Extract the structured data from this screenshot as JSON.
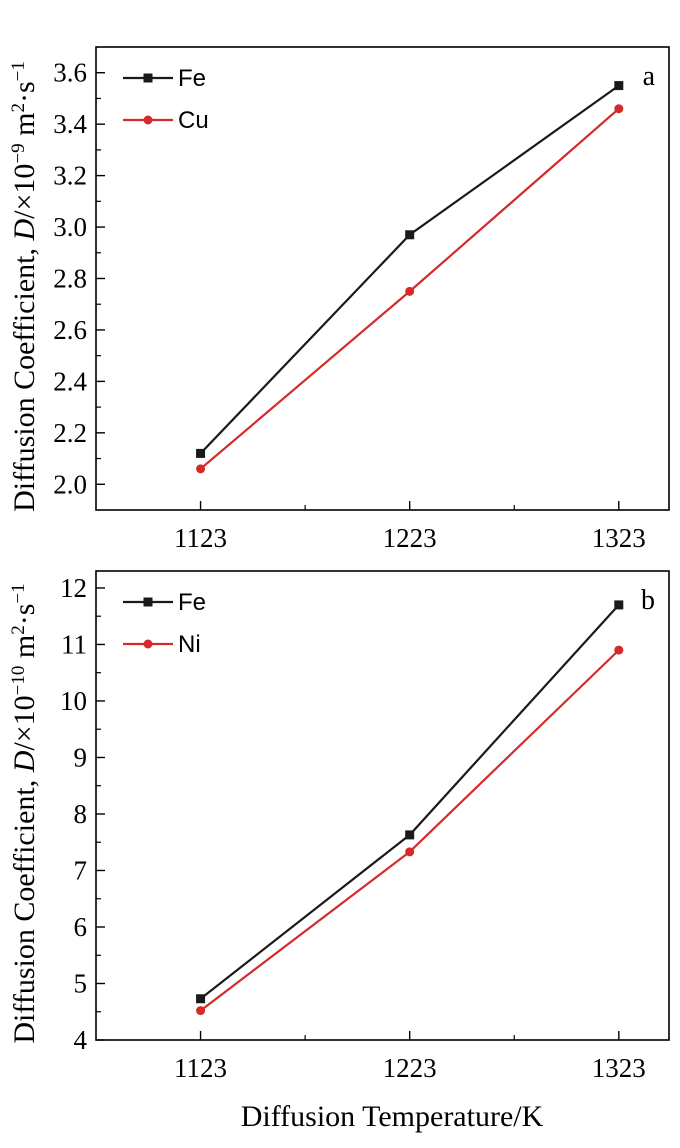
{
  "chart_data": [
    {
      "type": "line",
      "panel_label": "a",
      "categories": [
        "1123",
        "1223",
        "1323"
      ],
      "x": [
        1123,
        1223,
        1323
      ],
      "ylim": [
        1.9,
        3.7
      ],
      "yticks": [
        "2.0",
        "2.2",
        "2.4",
        "2.6",
        "2.8",
        "3.0",
        "3.2",
        "3.4",
        "3.6"
      ],
      "ylabel_main": "Diffusion Coefficient, ",
      "ylabel_var": "D",
      "ylabel_unit": "/×10",
      "ylabel_exp": "−9",
      "ylabel_tail": " m",
      "ylabel_m_exp": "2",
      "ylabel_s": "·s",
      "ylabel_s_exp": "−1",
      "legend_position": "top-left",
      "series": [
        {
          "name": "Fe",
          "color": "#1a1a1a",
          "marker": "square",
          "values": [
            2.12,
            2.97,
            3.55
          ]
        },
        {
          "name": "Cu",
          "color": "#d42a2a",
          "marker": "circle",
          "values": [
            2.06,
            2.75,
            3.46
          ]
        }
      ]
    },
    {
      "type": "line",
      "panel_label": "b",
      "categories": [
        "1123",
        "1223",
        "1323"
      ],
      "x": [
        1123,
        1223,
        1323
      ],
      "ylim": [
        4,
        12.3
      ],
      "yticks": [
        "4",
        "5",
        "6",
        "7",
        "8",
        "9",
        "10",
        "11",
        "12"
      ],
      "ylabel_main": "Diffusion Coefficient, ",
      "ylabel_var": "D",
      "ylabel_unit": "/×10",
      "ylabel_exp": "−10",
      "ylabel_tail": " m",
      "ylabel_m_exp": "2",
      "ylabel_s": "·s",
      "ylabel_s_exp": "−1",
      "legend_position": "top-left",
      "series": [
        {
          "name": "Fe",
          "color": "#1a1a1a",
          "marker": "square",
          "values": [
            4.73,
            7.63,
            11.7
          ]
        },
        {
          "name": "Ni",
          "color": "#d42a2a",
          "marker": "circle",
          "values": [
            4.52,
            7.33,
            10.9
          ]
        }
      ]
    }
  ],
  "xlabel": "Diffusion Temperature/K"
}
